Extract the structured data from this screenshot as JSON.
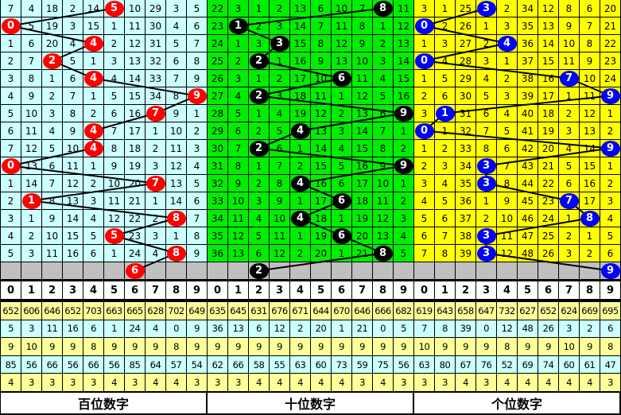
{
  "colors": {
    "hundreds_bg": "#ccffff",
    "hundreds_ball": "#ff0000",
    "tens_bg": "#00ee00",
    "tens_ball": "#000000",
    "units_bg": "#ffff00",
    "units_ball": "#0000ff",
    "gray": "#c0c0c0"
  },
  "header_digits": [
    "0",
    "1",
    "2",
    "3",
    "4",
    "5",
    "6",
    "7",
    "8",
    "9"
  ],
  "groups": [
    {
      "label": "百位数字",
      "hits": [
        5,
        0,
        4,
        2,
        4,
        9,
        7,
        4,
        4,
        0,
        7,
        1,
        8,
        5,
        8
      ],
      "next": 6,
      "rows": [
        [
          7,
          4,
          18,
          2,
          14,
          5,
          10,
          29,
          3,
          5
        ],
        [
          0,
          5,
          19,
          3,
          15,
          1,
          11,
          30,
          4,
          6
        ],
        [
          1,
          6,
          20,
          4,
          4,
          2,
          12,
          31,
          5,
          7
        ],
        [
          2,
          7,
          2,
          5,
          1,
          3,
          13,
          32,
          6,
          8
        ],
        [
          3,
          8,
          1,
          6,
          4,
          4,
          14,
          33,
          7,
          9
        ],
        [
          4,
          9,
          2,
          7,
          1,
          5,
          15,
          34,
          8,
          9
        ],
        [
          5,
          10,
          3,
          8,
          2,
          6,
          16,
          7,
          9,
          1
        ],
        [
          6,
          11,
          4,
          9,
          4,
          7,
          17,
          1,
          10,
          2
        ],
        [
          7,
          12,
          5,
          10,
          4,
          8,
          18,
          2,
          11,
          3
        ],
        [
          0,
          13,
          6,
          11,
          1,
          9,
          19,
          3,
          12,
          4
        ],
        [
          1,
          14,
          7,
          12,
          2,
          10,
          20,
          7,
          13,
          5
        ],
        [
          2,
          1,
          8,
          13,
          3,
          11,
          21,
          1,
          14,
          6
        ],
        [
          3,
          1,
          9,
          14,
          4,
          12,
          22,
          2,
          8,
          7
        ],
        [
          4,
          2,
          10,
          15,
          5,
          5,
          23,
          3,
          1,
          8
        ],
        [
          5,
          3,
          11,
          16,
          6,
          1,
          24,
          4,
          8,
          9
        ]
      ],
      "stats": [
        [
          652,
          606,
          646,
          652,
          703,
          663,
          665,
          628,
          702,
          649
        ],
        [
          5,
          3,
          11,
          16,
          6,
          1,
          24,
          4,
          0,
          9
        ],
        [
          9,
          10,
          9,
          9,
          8,
          9,
          9,
          9,
          8,
          9
        ],
        [
          85,
          56,
          66,
          56,
          66,
          56,
          85,
          64,
          57,
          54
        ],
        [
          4,
          3,
          3,
          3,
          3,
          4,
          3,
          4,
          4,
          3
        ]
      ]
    },
    {
      "label": "十位数字",
      "hits": [
        8,
        1,
        3,
        2,
        6,
        2,
        9,
        4,
        2,
        9,
        4,
        6,
        4,
        6,
        8
      ],
      "next": 2,
      "rows": [
        [
          22,
          3,
          1,
          2,
          13,
          6,
          10,
          7,
          8,
          11
        ],
        [
          23,
          1,
          2,
          3,
          14,
          7,
          11,
          8,
          1,
          12
        ],
        [
          24,
          1,
          3,
          3,
          15,
          8,
          12,
          9,
          2,
          13
        ],
        [
          25,
          2,
          2,
          1,
          16,
          9,
          13,
          10,
          3,
          14
        ],
        [
          26,
          3,
          1,
          2,
          17,
          10,
          6,
          11,
          4,
          15
        ],
        [
          27,
          4,
          2,
          3,
          18,
          11,
          1,
          12,
          5,
          16
        ],
        [
          28,
          5,
          1,
          4,
          19,
          12,
          2,
          13,
          6,
          9
        ],
        [
          29,
          6,
          2,
          5,
          4,
          13,
          3,
          14,
          7,
          1
        ],
        [
          30,
          7,
          2,
          6,
          1,
          14,
          4,
          15,
          8,
          2
        ],
        [
          31,
          8,
          1,
          7,
          2,
          15,
          5,
          16,
          9,
          9
        ],
        [
          32,
          9,
          2,
          8,
          4,
          16,
          6,
          17,
          10,
          1
        ],
        [
          33,
          10,
          3,
          9,
          1,
          17,
          6,
          18,
          11,
          2
        ],
        [
          34,
          11,
          4,
          10,
          4,
          18,
          1,
          19,
          12,
          3
        ],
        [
          35,
          12,
          5,
          11,
          1,
          19,
          6,
          20,
          13,
          4
        ],
        [
          36,
          13,
          6,
          12,
          2,
          20,
          1,
          21,
          8,
          5
        ]
      ],
      "stats": [
        [
          635,
          645,
          631,
          676,
          671,
          644,
          670,
          646,
          666,
          682
        ],
        [
          36,
          13,
          6,
          12,
          2,
          20,
          1,
          21,
          0,
          5
        ],
        [
          9,
          9,
          9,
          9,
          9,
          9,
          9,
          9,
          9,
          9
        ],
        [
          62,
          66,
          58,
          55,
          63,
          60,
          73,
          59,
          75,
          56
        ],
        [
          3,
          3,
          4,
          4,
          4,
          4,
          4,
          3,
          4,
          3
        ]
      ]
    },
    {
      "label": "个位数字",
      "hits": [
        3,
        0,
        4,
        0,
        7,
        9,
        1,
        0,
        9,
        3,
        3,
        7,
        8,
        3,
        3
      ],
      "next": 9,
      "rows": [
        [
          3,
          1,
          25,
          3,
          2,
          34,
          12,
          8,
          6,
          20
        ],
        [
          0,
          2,
          26,
          1,
          3,
          35,
          13,
          9,
          7,
          21
        ],
        [
          1,
          3,
          27,
          2,
          4,
          36,
          14,
          10,
          8,
          22
        ],
        [
          0,
          4,
          28,
          3,
          1,
          37,
          15,
          11,
          9,
          23
        ],
        [
          1,
          5,
          29,
          4,
          2,
          38,
          16,
          7,
          10,
          24
        ],
        [
          2,
          6,
          30,
          5,
          3,
          39,
          17,
          1,
          11,
          9
        ],
        [
          3,
          1,
          31,
          6,
          4,
          40,
          18,
          2,
          12,
          1
        ],
        [
          0,
          1,
          32,
          7,
          5,
          41,
          19,
          3,
          13,
          2
        ],
        [
          1,
          2,
          33,
          8,
          6,
          42,
          20,
          4,
          14,
          9
        ],
        [
          2,
          3,
          34,
          3,
          7,
          43,
          21,
          5,
          15,
          1
        ],
        [
          3,
          4,
          35,
          3,
          8,
          44,
          22,
          6,
          16,
          2
        ],
        [
          4,
          5,
          36,
          1,
          9,
          45,
          23,
          7,
          17,
          3
        ],
        [
          5,
          6,
          37,
          2,
          10,
          46,
          24,
          1,
          8,
          4
        ],
        [
          6,
          7,
          38,
          3,
          11,
          47,
          25,
          2,
          1,
          5
        ],
        [
          7,
          8,
          39,
          3,
          12,
          48,
          26,
          3,
          2,
          6
        ]
      ],
      "stats": [
        [
          619,
          643,
          658,
          647,
          732,
          627,
          652,
          624,
          669,
          695
        ],
        [
          7,
          8,
          39,
          0,
          12,
          48,
          26,
          3,
          2,
          6
        ],
        [
          10,
          9,
          9,
          9,
          8,
          9,
          9,
          10,
          9,
          8
        ],
        [
          63,
          80,
          67,
          76,
          52,
          69,
          74,
          60,
          61,
          47
        ],
        [
          3,
          3,
          4,
          3,
          4,
          4,
          4,
          4,
          4,
          3
        ]
      ]
    }
  ]
}
